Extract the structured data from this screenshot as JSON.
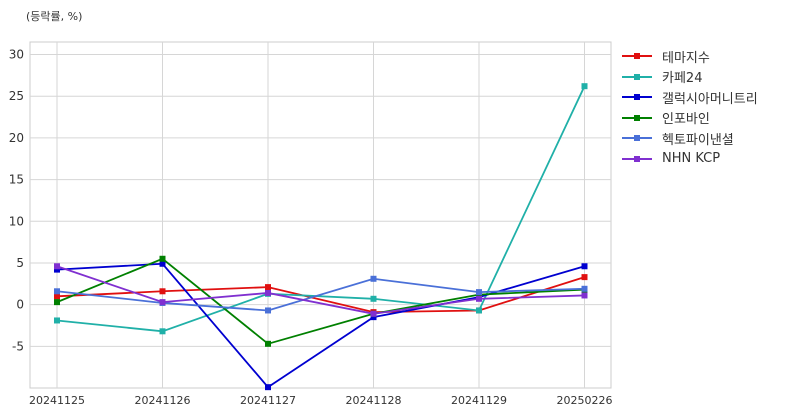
{
  "unit_label": "(등락률, %)",
  "chart_data": {
    "type": "line",
    "categories": [
      "20241125",
      "20241126",
      "20241127",
      "20241128",
      "20241129",
      "20250226"
    ],
    "ylim": [
      -10,
      31.5
    ],
    "yticks": [
      -5,
      0,
      5,
      10,
      15,
      20,
      25,
      30
    ],
    "grid": true,
    "legend": "top-right outside",
    "series": [
      {
        "name": "테마지수",
        "color": "#e01010",
        "values": [
          1.0,
          1.6,
          2.1,
          -0.9,
          -0.7,
          3.3
        ]
      },
      {
        "name": "카페24",
        "color": "#20b0a8",
        "values": [
          -1.9,
          -3.2,
          1.3,
          0.7,
          -0.7,
          26.2
        ]
      },
      {
        "name": "갤럭시아머니트리",
        "color": "#0000d0",
        "values": [
          4.2,
          4.9,
          -9.9,
          -1.5,
          0.9,
          4.6
        ]
      },
      {
        "name": "인포바인",
        "color": "#008000",
        "values": [
          0.3,
          5.5,
          -4.7,
          -1.1,
          1.2,
          1.8
        ]
      },
      {
        "name": "헥토파이낸셜",
        "color": "#4a70d8",
        "values": [
          1.6,
          0.2,
          -0.7,
          3.1,
          1.5,
          1.9
        ]
      },
      {
        "name": "NHN KCP",
        "color": "#8030d0",
        "values": [
          4.6,
          0.3,
          1.4,
          -1.1,
          0.7,
          1.1
        ]
      }
    ]
  }
}
